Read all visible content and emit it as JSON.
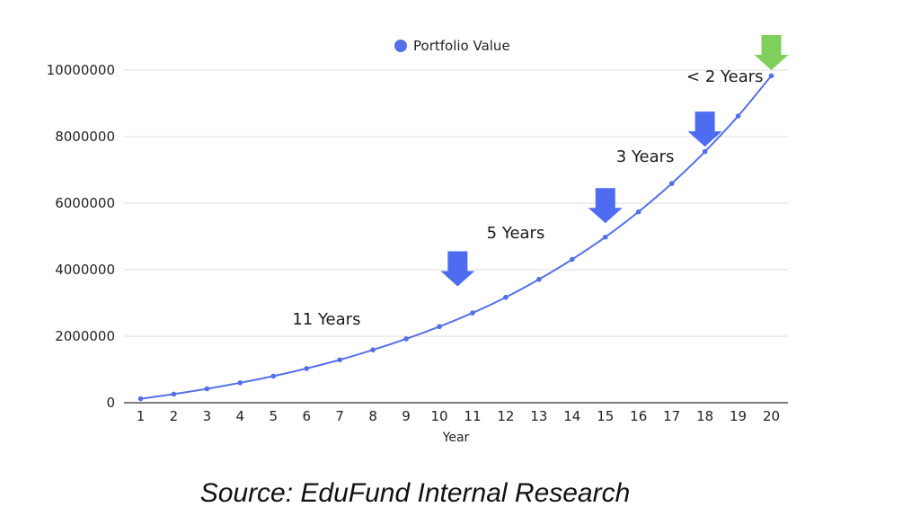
{
  "chart_data": {
    "type": "line",
    "xlabel": "Year",
    "ylabel": "",
    "x": [
      1,
      2,
      3,
      4,
      5,
      6,
      7,
      8,
      9,
      10,
      11,
      12,
      13,
      14,
      15,
      16,
      17,
      18,
      19,
      20
    ],
    "ylim": [
      0,
      10000000
    ],
    "yticks": [
      0,
      2000000,
      4000000,
      6000000,
      8000000,
      10000000
    ],
    "grid": true,
    "legend_position": "top",
    "series": [
      {
        "name": "Portfolio Value",
        "color": "#5470e8",
        "values": [
          120000,
          260000,
          420000,
          600000,
          800000,
          1030000,
          1290000,
          1590000,
          1920000,
          2290000,
          2700000,
          3170000,
          3710000,
          4310000,
          4980000,
          5740000,
          6590000,
          7550000,
          8620000,
          9830000
        ]
      }
    ],
    "annotations": [
      {
        "text": "11 Years",
        "x": 6.6,
        "y": 2350000
      },
      {
        "text": "5 Years",
        "x": 12.3,
        "y": 4950000
      },
      {
        "text": "3 Years",
        "x": 16.2,
        "y": 7250000
      },
      {
        "text": "< 2 Years",
        "x": 18.6,
        "y": 9650000
      }
    ],
    "markers": [
      {
        "type": "arrow-down",
        "x": 10.55,
        "y": 3500000,
        "color": "#4f6cf0"
      },
      {
        "type": "arrow-down",
        "x": 15.0,
        "y": 5400000,
        "color": "#4f6cf0"
      },
      {
        "type": "arrow-down",
        "x": 18.0,
        "y": 7700000,
        "color": "#4f6cf0"
      },
      {
        "type": "arrow-down",
        "x": 20.0,
        "y": 10000000,
        "color": "#7ed05b"
      }
    ]
  },
  "footer": {
    "source": "Source: EduFund Internal Research"
  }
}
